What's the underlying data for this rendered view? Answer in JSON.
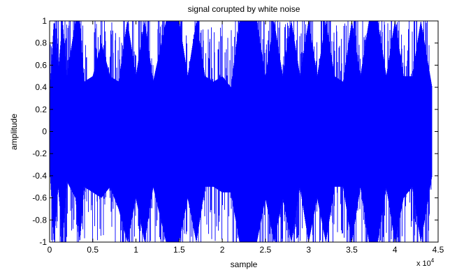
{
  "chart_data": {
    "type": "line",
    "title": "signal corupted by white noise",
    "xlabel": "sample",
    "ylabel": "amplitude",
    "x_exponent_label": "x 10",
    "x_exponent_power": "4",
    "xlim": [
      0,
      4.5
    ],
    "ylim": [
      -1,
      1
    ],
    "x_ticks": [
      0,
      0.5,
      1,
      1.5,
      2,
      2.5,
      3,
      3.5,
      4,
      4.5
    ],
    "x_tick_labels": [
      "0",
      "0.5",
      "1",
      "1.5",
      "2",
      "2.5",
      "3",
      "3.5",
      "4",
      "4.5"
    ],
    "y_ticks": [
      1,
      0.8,
      0.6,
      0.4,
      0.2,
      0,
      -0.2,
      -0.4,
      -0.6,
      -0.8,
      -1
    ],
    "y_tick_labels": [
      "1",
      "0.8",
      "0.6",
      "0.4",
      "0.2",
      "0",
      "-0.2",
      "-0.4",
      "-0.6",
      "-0.8",
      "-1"
    ],
    "grid": false,
    "series": [
      {
        "color": "#0000ff",
        "x_range": [
          0,
          4.43
        ],
        "envelope": {
          "x": [
            0,
            0.05,
            0.1,
            0.15,
            0.2,
            0.3,
            0.35,
            0.4,
            0.5,
            0.6,
            0.7,
            0.8,
            0.9,
            1.0,
            1.1,
            1.2,
            1.35,
            1.5,
            1.6,
            1.7,
            1.8,
            1.9,
            2.0,
            2.1,
            2.2,
            2.3,
            2.4,
            2.5,
            2.6,
            2.7,
            2.8,
            2.9,
            3.0,
            3.1,
            3.2,
            3.3,
            3.4,
            3.5,
            3.6,
            3.7,
            3.8,
            3.9,
            4.0,
            4.1,
            4.2,
            4.3,
            4.43
          ],
          "upper": [
            0.3,
            1,
            0.55,
            1,
            0.5,
            1,
            1,
            0.45,
            0.5,
            0.8,
            0.5,
            0.45,
            1,
            0.5,
            1,
            0.45,
            1,
            1,
            0.5,
            1,
            0.5,
            0.45,
            0.5,
            0.4,
            1,
            1,
            1,
            0.5,
            1,
            0.5,
            1,
            0.5,
            1,
            0.5,
            1,
            0.5,
            0.45,
            1,
            0.5,
            1,
            1,
            0.5,
            1,
            0.5,
            0.5,
            1,
            0.4
          ],
          "lower": [
            -0.3,
            -1,
            -0.5,
            -1,
            -0.45,
            -0.6,
            -1,
            -0.5,
            -0.55,
            -0.6,
            -0.5,
            -0.7,
            -1,
            -0.6,
            -1,
            -0.5,
            -1,
            -1,
            -0.6,
            -1,
            -0.5,
            -0.5,
            -0.55,
            -0.55,
            -1,
            -1,
            -1,
            -0.6,
            -1,
            -0.6,
            -1,
            -0.5,
            -1,
            -0.6,
            -1,
            -0.5,
            -0.5,
            -1,
            -0.5,
            -1,
            -1,
            -0.5,
            -1,
            -0.6,
            -0.5,
            -1,
            -0.4
          ]
        }
      }
    ]
  }
}
